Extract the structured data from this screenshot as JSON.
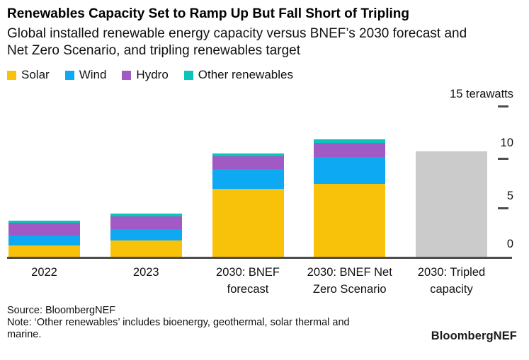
{
  "header": {
    "title": "Renewables Capacity Set to Ramp Up But Fall Short of Tripling",
    "subtitle_lines": [
      "Global installed renewable energy capacity versus BNEF’s 2030 forecast and",
      "Net Zero Scenario, and tripling renewables target"
    ]
  },
  "legend": {
    "items": [
      {
        "label": "Solar",
        "color": "#F9C20A"
      },
      {
        "label": "Wind",
        "color": "#0DA9F2"
      },
      {
        "label": "Hydro",
        "color": "#A159C4"
      },
      {
        "label": "Other renewables",
        "color": "#0BC4BC"
      }
    ]
  },
  "axis": {
    "unit": "terawatts",
    "ylim": [
      0,
      15
    ],
    "ticks": [
      {
        "value": 15,
        "label": "15 terawatts"
      },
      {
        "value": 10,
        "label": "10"
      },
      {
        "value": 5,
        "label": "5"
      },
      {
        "value": 0,
        "label": "0"
      }
    ]
  },
  "chart_data": {
    "type": "bar",
    "stacked": true,
    "unit": "terawatts",
    "title": "Renewables Capacity Set to Ramp Up But Fall Short of Tripling",
    "categories": [
      "2022",
      "2023",
      "2030: BNEF forecast",
      "2030: BNEF Net Zero Scenario",
      "2030: Tripled capacity"
    ],
    "series": [
      {
        "name": "Solar",
        "color": "#F9C20A",
        "values": [
          1.15,
          1.6,
          6.8,
          7.3,
          null
        ]
      },
      {
        "name": "Wind",
        "color": "#0DA9F2",
        "values": [
          0.95,
          1.15,
          2.0,
          2.7,
          null
        ]
      },
      {
        "name": "Hydro",
        "color": "#A159C4",
        "values": [
          1.3,
          1.3,
          1.25,
          1.45,
          null
        ]
      },
      {
        "name": "Other renewables",
        "color": "#0BC4BC",
        "values": [
          0.25,
          0.3,
          0.3,
          0.3,
          null
        ]
      },
      {
        "name": "Tripled capacity target",
        "color": "#CBCBCB",
        "values": [
          null,
          null,
          null,
          null,
          10.6
        ]
      }
    ],
    "totals": [
      3.65,
      4.35,
      10.35,
      11.75,
      10.6
    ],
    "ylim": [
      0,
      15
    ],
    "grid": false,
    "legend_position": "top"
  },
  "footer": {
    "source": "Source: BloombergNEF",
    "note_lines": [
      "Note: ‘Other renewables’ includes bioenergy, geothermal, solar thermal and",
      "marine."
    ],
    "brand": "BloombergNEF"
  }
}
